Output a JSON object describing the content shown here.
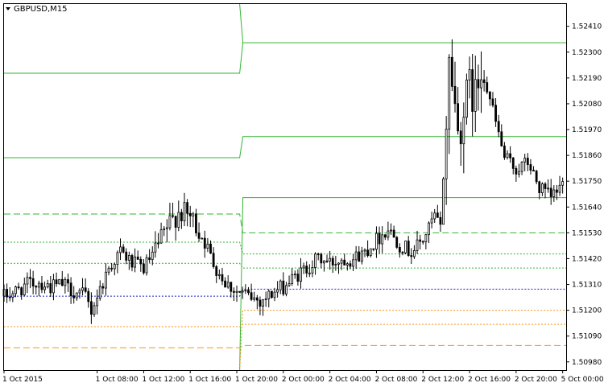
{
  "window": {
    "title": "GBPUSD,M15"
  },
  "colors": {
    "background": "#ffffff",
    "frame": "#000000",
    "candle": "#000000",
    "upper_levels": "#32b432",
    "lower_levels": "#f0961e",
    "pivot": "#1e1ec8"
  },
  "icons": {
    "title_menu": "triangle-down-icon"
  },
  "chart_data": {
    "type": "candlestick",
    "symbol": "GBPUSD",
    "timeframe": "M15",
    "y_ticks": [
      "1.52410",
      "1.52300",
      "1.52190",
      "1.52080",
      "1.51970",
      "1.51860",
      "1.51750",
      "1.51640",
      "1.51530",
      "1.51420",
      "1.51310",
      "1.51200",
      "1.51090",
      "1.50980"
    ],
    "y_range": [
      1.50945,
      1.52505
    ],
    "x_ticks": [
      "1 Oct 2015",
      "1 Oct 08:00",
      "1 Oct 12:00",
      "1 Oct 16:00",
      "1 Oct 20:00",
      "2 Oct 00:00",
      "2 Oct 04:00",
      "2 Oct 08:00",
      "2 Oct 12:00",
      "2 Oct 16:00",
      "2 Oct 20:00",
      "5 Oct 00:00"
    ],
    "x_tick_hours": [
      0,
      8,
      12,
      16,
      20,
      24,
      28,
      32,
      36,
      40,
      44,
      48
    ],
    "x_range_hours": [
      0,
      48.3
    ],
    "day_change_hour": 20.25,
    "levels": [
      {
        "role": "resistance-3",
        "style": "solid",
        "color_key": "upper_levels",
        "before": 1.5221,
        "after": 1.5234
      },
      {
        "role": "resistance-2",
        "style": "solid",
        "color_key": "upper_levels",
        "before": 1.5185,
        "after": 1.5194
      },
      {
        "role": "resistance-1",
        "style": "solid",
        "color_key": "upper_levels",
        "before": null,
        "after": 1.5168
      },
      {
        "role": "pivot-upper",
        "style": "dashed",
        "color_key": "upper_levels",
        "before": 1.5161,
        "after": 1.5153
      },
      {
        "role": "upper-minor-1",
        "style": "dotted",
        "color_key": "upper_levels",
        "before": 1.5149,
        "after": 1.5144
      },
      {
        "role": "upper-minor-2",
        "style": "dotted",
        "color_key": "upper_levels",
        "before": 1.514,
        "after": 1.5138
      },
      {
        "role": "pivot",
        "style": "dotted",
        "color_key": "pivot",
        "before": 1.5126,
        "after": 1.5129
      },
      {
        "role": "lower-minor-1",
        "style": "dotted",
        "color_key": "lower_levels",
        "before": null,
        "after": 1.512
      },
      {
        "role": "lower-minor-2",
        "style": "dotted",
        "color_key": "lower_levels",
        "before": 1.5113,
        "after": 1.5114
      },
      {
        "role": "support-1",
        "style": "dashed",
        "color_key": "lower_levels",
        "before": 1.5104,
        "after": 1.5105
      }
    ],
    "top_level_before_start": 1.525,
    "candle_interval_minutes": 15,
    "close_path": [
      [
        0,
        1.5126
      ],
      [
        1,
        1.5128
      ],
      [
        2,
        1.5131
      ],
      [
        3,
        1.5132
      ],
      [
        4,
        1.513
      ],
      [
        5,
        1.5131
      ],
      [
        6,
        1.5128
      ],
      [
        7,
        1.5126
      ],
      [
        7.5,
        1.512
      ],
      [
        8,
        1.5126
      ],
      [
        9,
        1.5138
      ],
      [
        10,
        1.5145
      ],
      [
        11,
        1.514
      ],
      [
        12,
        1.5138
      ],
      [
        13,
        1.5145
      ],
      [
        14,
        1.5155
      ],
      [
        15,
        1.5162
      ],
      [
        16,
        1.516
      ],
      [
        17,
        1.5152
      ],
      [
        18,
        1.514
      ],
      [
        19,
        1.5132
      ],
      [
        20,
        1.5128
      ],
      [
        21,
        1.5126
      ],
      [
        22,
        1.5124
      ],
      [
        24,
        1.513
      ],
      [
        25,
        1.5134
      ],
      [
        26,
        1.5138
      ],
      [
        27,
        1.5142
      ],
      [
        28,
        1.514
      ],
      [
        29,
        1.5142
      ],
      [
        30,
        1.5142
      ],
      [
        31,
        1.5145
      ],
      [
        32,
        1.515
      ],
      [
        33,
        1.5155
      ],
      [
        34,
        1.5148
      ],
      [
        35,
        1.5145
      ],
      [
        36,
        1.515
      ],
      [
        37,
        1.516
      ],
      [
        37.5,
        1.5155
      ],
      [
        38,
        1.52
      ],
      [
        38.3,
        1.523
      ],
      [
        39,
        1.5195
      ],
      [
        40,
        1.5215
      ],
      [
        40.5,
        1.521
      ],
      [
        41,
        1.5225
      ],
      [
        42,
        1.5205
      ],
      [
        43,
        1.5185
      ],
      [
        44,
        1.518
      ],
      [
        45,
        1.5183
      ],
      [
        46,
        1.5172
      ],
      [
        47,
        1.5168
      ],
      [
        48,
        1.5174
      ]
    ]
  }
}
